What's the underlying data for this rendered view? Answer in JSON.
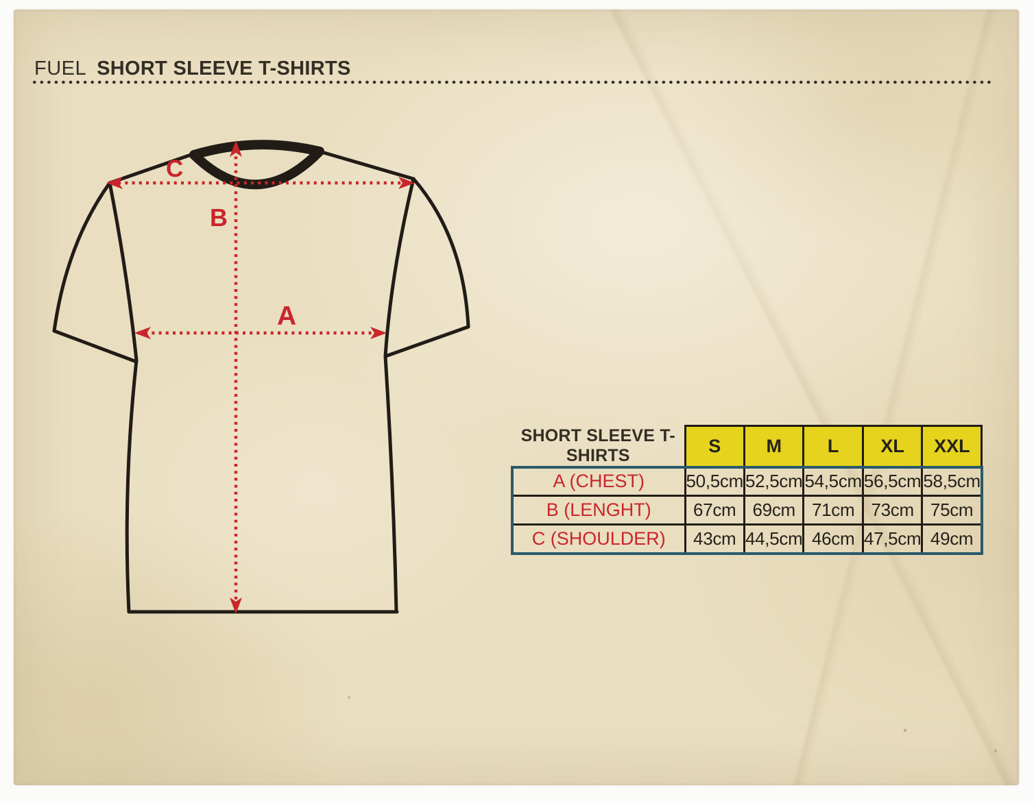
{
  "header": {
    "brand": "FUEL",
    "title": "SHORT SLEEVE T-SHIRTS"
  },
  "diagram": {
    "labels": {
      "a": "A",
      "b": "B",
      "c": "C"
    }
  },
  "size_table": {
    "corner_label": "SHORT SLEEVE T-SHIRTS",
    "sizes": [
      "S",
      "M",
      "L",
      "XL",
      "XXL"
    ],
    "rows": [
      {
        "label": "A (CHEST)",
        "values": [
          "50,5cm",
          "52,5cm",
          "54,5cm",
          "56,5cm",
          "58,5cm"
        ]
      },
      {
        "label": "B (LENGHT)",
        "values": [
          "67cm",
          "69cm",
          "71cm",
          "73cm",
          "75cm"
        ]
      },
      {
        "label": "C (SHOULDER)",
        "values": [
          "43cm",
          "44,5cm",
          "46cm",
          "47,5cm",
          "49cm"
        ]
      }
    ]
  },
  "colors": {
    "paper": "#e9dec0",
    "ink": "#332e25",
    "shirt": "#211c16",
    "red": "#c9252b",
    "yellow": "#e5d31d",
    "teal": "#2a5a6a"
  }
}
